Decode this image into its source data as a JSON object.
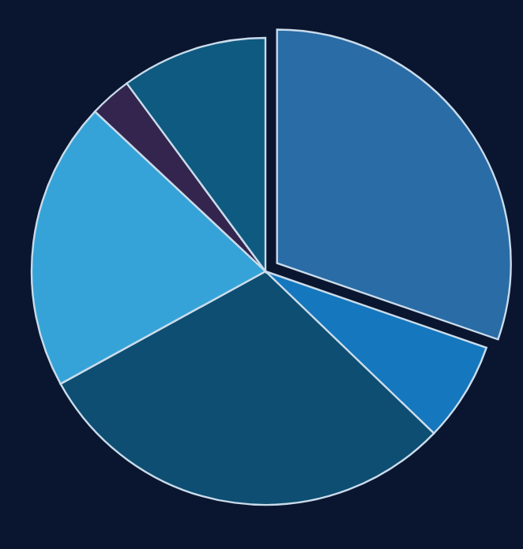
{
  "chart_data": {
    "type": "pie",
    "categories": [
      null,
      null,
      null,
      null,
      null,
      null
    ],
    "values": [
      30.3,
      6.9,
      29.8,
      20,
      2.9,
      10.1
    ],
    "colors": [
      "#2a6ca6",
      "#1577bd",
      "#0d4e72",
      "#35a3d8",
      "#34254f",
      "#0f5a80"
    ]
  }
}
